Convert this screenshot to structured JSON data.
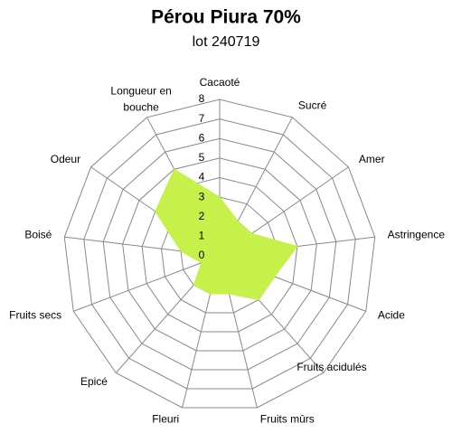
{
  "chart_data": {
    "type": "radar",
    "title": "Pérou Piura 70%",
    "subtitle": "lot 240719",
    "categories": [
      "Cacaoté",
      "Sucré",
      "Amer",
      "Astringence",
      "Acide",
      "Fruits acidulés",
      "Fruits mûrs",
      "Fleuri",
      "Epicé",
      "Fruits secs",
      "Boisé",
      "Odeur",
      "Longueur en bouche"
    ],
    "values": [
      3,
      2,
      2,
      4,
      3,
      3,
      2,
      2,
      2,
      1,
      2,
      4,
      5
    ],
    "color": "#c6f04a",
    "rlim": [
      0,
      8
    ],
    "rticks": [
      0,
      1,
      2,
      3,
      4,
      5,
      6,
      7,
      8
    ],
    "grid": true
  }
}
